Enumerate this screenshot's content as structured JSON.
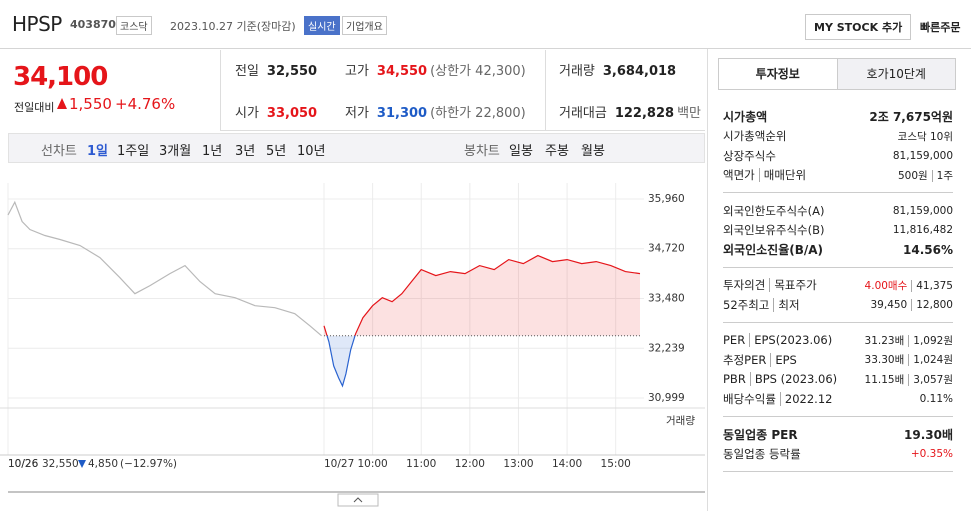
{
  "header": {
    "name": "HPSP",
    "code": "403870",
    "market": "코스닥",
    "date": "2023.10.27 기준(장마감)",
    "realtime": "실시간",
    "company": "기업개요",
    "mystock": "MY STOCK 추가",
    "quick_order": "빠른주문"
  },
  "price": {
    "current": "34,100",
    "change_label": "전일대비",
    "change": "1,550",
    "rate": "+4.76%"
  },
  "quote": [
    {
      "label": "전일",
      "value": "32,550"
    },
    {
      "label": "고가",
      "value": "34,550",
      "extra": "(상한가 42,300)",
      "color": "#e5151a"
    },
    {
      "label": "거래량",
      "value": "3,684,018"
    },
    {
      "label": "시가",
      "value": "33,050",
      "color": "#e5151a"
    },
    {
      "label": "저가",
      "value": "31,300",
      "extra": "(하한가 22,800)",
      "color": "#1e5bc6"
    },
    {
      "label": "거래대금",
      "value": "122,828",
      "extra": "백만"
    }
  ],
  "tabs": {
    "line_label": "선차트",
    "periods": [
      "1일",
      "1주일",
      "3개월",
      "1년",
      "3년",
      "5년",
      "10년"
    ],
    "candle_label": "봉차트",
    "candles": [
      "일봉",
      "주봉",
      "월봉"
    ]
  },
  "chart_data": {
    "type": "line",
    "baseline": 32550,
    "xlim": [
      0,
      13
    ],
    "xticks": [
      {
        "value": 0,
        "label": "10/26"
      },
      {
        "value": 6.5,
        "label": "10/27"
      },
      {
        "value": 7.5,
        "label": "10:00"
      },
      {
        "value": 8.5,
        "label": "11:00"
      },
      {
        "value": 9.5,
        "label": "12:00"
      },
      {
        "value": 10.5,
        "label": "13:00"
      },
      {
        "value": 11.5,
        "label": "14:00"
      },
      {
        "value": 12.5,
        "label": "15:00"
      }
    ],
    "ylim": [
      30999,
      35960
    ],
    "yticks": [
      {
        "value": 30999,
        "label": "30,999"
      },
      {
        "value": 32239,
        "label": "32,239"
      },
      {
        "value": 33480,
        "label": "33,480"
      },
      {
        "value": 34720,
        "label": "34,720"
      },
      {
        "value": 35960,
        "label": "35,960"
      }
    ],
    "grid": true,
    "volume_label": "거래량",
    "series": [
      {
        "color": "#b9b9b9",
        "x": [
          0,
          0.14,
          0.29,
          0.45,
          0.76,
          1.07,
          1.48,
          1.89,
          2.3,
          2.61,
          2.92,
          3.33,
          3.64,
          3.95,
          4.26,
          4.67,
          5.08,
          5.49,
          5.9,
          6.21,
          6.45
        ],
        "values": [
          35560,
          35880,
          35400,
          35200,
          35050,
          34950,
          34800,
          34500,
          34000,
          33600,
          33800,
          34100,
          34300,
          33900,
          33600,
          33500,
          33300,
          33250,
          33100,
          32800,
          32550
        ]
      },
      {
        "color": "#e5151a",
        "down_color": "#2a63d0",
        "x": [
          6.5,
          6.6,
          6.7,
          6.8,
          6.88,
          6.95,
          7.05,
          7.15,
          7.3,
          7.5,
          7.7,
          7.9,
          8.1,
          8.3,
          8.5,
          8.8,
          9.1,
          9.4,
          9.7,
          10.0,
          10.3,
          10.6,
          10.9,
          11.2,
          11.5,
          11.8,
          12.1,
          12.4,
          12.7,
          13.0
        ],
        "values": [
          32800,
          32400,
          31800,
          31500,
          31300,
          31600,
          32200,
          32600,
          33000,
          33300,
          33500,
          33400,
          33600,
          33900,
          34200,
          34050,
          34150,
          34100,
          34300,
          34200,
          34450,
          34350,
          34550,
          34400,
          34450,
          34350,
          34400,
          34300,
          34150,
          34100
        ]
      }
    ],
    "footer": {
      "date": "10/26",
      "value": "32,550",
      "change": "4,850",
      "rate": "(−12.97%)"
    }
  },
  "side": {
    "tabs": [
      "투자정보",
      "호가10단계"
    ],
    "sections": [
      [
        {
          "label": [
            "시가총액"
          ],
          "values": [
            "2조 7,675억원"
          ],
          "emphasis": true
        },
        {
          "label": [
            "시가총액순위"
          ],
          "values": [
            "코스닥 10위"
          ]
        },
        {
          "label": [
            "상장주식수"
          ],
          "values": [
            "81,159,000"
          ]
        },
        {
          "label": [
            "액면가",
            "매매단위"
          ],
          "values": [
            "500원",
            "1주"
          ]
        }
      ],
      [
        {
          "label": [
            "외국인한도주식수(A)"
          ],
          "values": [
            "81,159,000"
          ]
        },
        {
          "label": [
            "외국인보유주식수(B)"
          ],
          "values": [
            "11,816,482"
          ]
        },
        {
          "label": [
            "외국인소진율(B/A)"
          ],
          "values": [
            "14.56%"
          ],
          "emphasis": true
        }
      ],
      [
        {
          "label": [
            "투자의견",
            "목표주가"
          ],
          "values": [
            "4.00매수",
            "41,375"
          ],
          "value_colors": [
            "#e5151a",
            null
          ]
        },
        {
          "label": [
            "52주최고",
            "최저"
          ],
          "values": [
            "39,450",
            "12,800"
          ]
        }
      ],
      [
        {
          "label": [
            "PER",
            "EPS(2023.06)"
          ],
          "values": [
            "31.23배",
            "1,092원"
          ]
        },
        {
          "label": [
            "추정PER",
            "EPS"
          ],
          "values": [
            "33.30배",
            "1,024원"
          ]
        },
        {
          "label": [
            "PBR",
            "BPS (2023.06)"
          ],
          "values": [
            "11.15배",
            "3,057원"
          ]
        },
        {
          "label": [
            "배당수익률",
            "2022.12"
          ],
          "values": [
            "0.11%"
          ]
        }
      ],
      [
        {
          "label": [
            "동일업종 PER"
          ],
          "values": [
            "19.30배"
          ],
          "emphasis": true
        },
        {
          "label": [
            "동일업종 등락률"
          ],
          "values": [
            "+0.35%"
          ],
          "value_colors": [
            "#e5151a"
          ]
        }
      ]
    ]
  }
}
